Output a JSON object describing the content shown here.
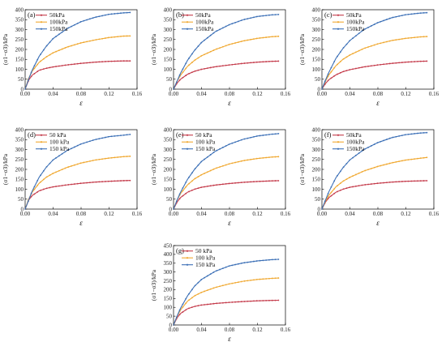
{
  "figure": {
    "series_colors": [
      "#c43a4a",
      "#f0a830",
      "#3b6fb6"
    ]
  },
  "chart_data": [
    {
      "panel": "(a)",
      "type": "line",
      "xlabel": "ε",
      "ylabel": "(σ1−σ3)/kPa",
      "xlim": [
        0,
        0.16
      ],
      "ylim": [
        0,
        400
      ],
      "xticks": [
        "0.00",
        "0.04",
        "0.08",
        "0.12",
        "0.16"
      ],
      "yticks": [
        "0",
        "50",
        "100",
        "150",
        "200",
        "250",
        "300",
        "350",
        "400"
      ],
      "legend_position": "top-left",
      "series": [
        {
          "name": "50kPa",
          "color": "#c43a4a",
          "x": [
            0,
            0.005,
            0.01,
            0.02,
            0.03,
            0.04,
            0.06,
            0.08,
            0.1,
            0.12,
            0.14,
            0.15
          ],
          "y": [
            0,
            45,
            70,
            95,
            105,
            112,
            122,
            130,
            136,
            140,
            142,
            142
          ]
        },
        {
          "name": "100kPa",
          "color": "#f0a830",
          "x": [
            0,
            0.005,
            0.01,
            0.02,
            0.03,
            0.04,
            0.06,
            0.08,
            0.1,
            0.12,
            0.14,
            0.15
          ],
          "y": [
            0,
            55,
            90,
            135,
            162,
            183,
            212,
            233,
            248,
            260,
            267,
            268
          ]
        },
        {
          "name": "150kPa",
          "color": "#3b6fb6",
          "x": [
            0,
            0.005,
            0.01,
            0.02,
            0.03,
            0.04,
            0.06,
            0.08,
            0.1,
            0.12,
            0.14,
            0.15
          ],
          "y": [
            0,
            50,
            95,
            165,
            215,
            255,
            305,
            340,
            362,
            377,
            384,
            386
          ]
        }
      ]
    },
    {
      "panel": "(b)",
      "type": "line",
      "xlabel": "ε",
      "ylabel": "(σ1−σ3)/kPa",
      "xlim": [
        0,
        0.16
      ],
      "ylim": [
        0,
        400
      ],
      "xticks": [
        "0.00",
        "0.04",
        "0.08",
        "0.12",
        "0.16"
      ],
      "yticks": [
        "0",
        "50",
        "100",
        "150",
        "200",
        "250",
        "300",
        "350",
        "400"
      ],
      "legend_position": "top-left",
      "series": [
        {
          "name": "50kPa",
          "color": "#c43a4a",
          "x": [
            0,
            0.005,
            0.01,
            0.02,
            0.03,
            0.04,
            0.06,
            0.08,
            0.1,
            0.12,
            0.14,
            0.15
          ],
          "y": [
            0,
            30,
            50,
            75,
            90,
            100,
            113,
            122,
            130,
            136,
            140,
            141
          ]
        },
        {
          "name": "100kPa",
          "color": "#f0a830",
          "x": [
            0,
            0.005,
            0.01,
            0.02,
            0.03,
            0.04,
            0.06,
            0.08,
            0.1,
            0.12,
            0.14,
            0.15
          ],
          "y": [
            0,
            40,
            70,
            115,
            145,
            168,
            200,
            225,
            243,
            256,
            264,
            266
          ]
        },
        {
          "name": "150kPa",
          "color": "#3b6fb6",
          "x": [
            0,
            0.005,
            0.01,
            0.02,
            0.03,
            0.04,
            0.06,
            0.08,
            0.1,
            0.12,
            0.14,
            0.15
          ],
          "y": [
            0,
            40,
            80,
            145,
            195,
            235,
            290,
            325,
            350,
            366,
            374,
            376
          ]
        }
      ]
    },
    {
      "panel": "(c)",
      "type": "line",
      "xlabel": "ε",
      "ylabel": "(σ1−σ3)/kPa",
      "xlim": [
        0,
        0.16
      ],
      "ylim": [
        0,
        400
      ],
      "xticks": [
        "0.00",
        "0.04",
        "0.08",
        "0.12",
        "0.16"
      ],
      "yticks": [
        "0",
        "50",
        "100",
        "150",
        "200",
        "250",
        "300",
        "350",
        "400"
      ],
      "legend_position": "top-left",
      "series": [
        {
          "name": "50kPa",
          "color": "#c43a4a",
          "x": [
            0,
            0.005,
            0.01,
            0.02,
            0.03,
            0.04,
            0.06,
            0.08,
            0.1,
            0.12,
            0.14,
            0.15
          ],
          "y": [
            0,
            28,
            48,
            72,
            88,
            98,
            112,
            122,
            130,
            136,
            140,
            141
          ]
        },
        {
          "name": "100kPa",
          "color": "#f0a830",
          "x": [
            0,
            0.005,
            0.01,
            0.02,
            0.03,
            0.04,
            0.06,
            0.08,
            0.1,
            0.12,
            0.14,
            0.15
          ],
          "y": [
            0,
            40,
            72,
            118,
            150,
            172,
            205,
            228,
            245,
            256,
            263,
            265
          ]
        },
        {
          "name": "150kPa",
          "color": "#3b6fb6",
          "x": [
            0,
            0.005,
            0.01,
            0.02,
            0.03,
            0.04,
            0.06,
            0.08,
            0.1,
            0.12,
            0.14,
            0.15
          ],
          "y": [
            0,
            45,
            85,
            155,
            205,
            245,
            300,
            335,
            360,
            375,
            383,
            385
          ]
        }
      ]
    },
    {
      "panel": "(d)",
      "type": "line",
      "xlabel": "ε",
      "ylabel": "(σ1−σ3)/kPa",
      "xlim": [
        0,
        0.16
      ],
      "ylim": [
        0,
        400
      ],
      "xticks": [
        "0.00",
        "0.04",
        "0.08",
        "0.12",
        "0.16"
      ],
      "yticks": [
        "0",
        "50",
        "100",
        "150",
        "200",
        "250",
        "300",
        "350",
        "400"
      ],
      "legend_position": "top-left",
      "series": [
        {
          "name": "50 kPa",
          "color": "#c43a4a",
          "x": [
            0,
            0.005,
            0.01,
            0.02,
            0.03,
            0.04,
            0.06,
            0.08,
            0.1,
            0.12,
            0.14,
            0.15
          ],
          "y": [
            0,
            45,
            68,
            92,
            104,
            112,
            122,
            130,
            136,
            140,
            143,
            144
          ]
        },
        {
          "name": "100 kPa",
          "color": "#f0a830",
          "x": [
            0,
            0.005,
            0.01,
            0.02,
            0.03,
            0.04,
            0.06,
            0.08,
            0.1,
            0.12,
            0.14,
            0.15
          ],
          "y": [
            0,
            50,
            85,
            130,
            160,
            180,
            210,
            232,
            247,
            257,
            264,
            266
          ]
        },
        {
          "name": "150 kPa",
          "color": "#3b6fb6",
          "x": [
            0,
            0.005,
            0.01,
            0.02,
            0.03,
            0.04,
            0.06,
            0.08,
            0.1,
            0.12,
            0.14,
            0.15
          ],
          "y": [
            0,
            45,
            90,
            160,
            210,
            248,
            295,
            328,
            350,
            365,
            372,
            376
          ]
        }
      ]
    },
    {
      "panel": "(e)",
      "type": "line",
      "xlabel": "ε",
      "ylabel": "(σ1−σ3)/kPa",
      "xlim": [
        0,
        0.16
      ],
      "ylim": [
        0,
        400
      ],
      "xticks": [
        "0.00",
        "0.04",
        "0.08",
        "0.12",
        "0.16"
      ],
      "yticks": [
        "0",
        "50",
        "100",
        "150",
        "200",
        "250",
        "300",
        "350",
        "400"
      ],
      "legend_position": "top-left",
      "series": [
        {
          "name": "50 kPa",
          "color": "#c43a4a",
          "x": [
            0,
            0.005,
            0.01,
            0.02,
            0.03,
            0.04,
            0.06,
            0.08,
            0.1,
            0.12,
            0.14,
            0.15
          ],
          "y": [
            0,
            35,
            58,
            85,
            100,
            110,
            121,
            129,
            135,
            139,
            142,
            143
          ]
        },
        {
          "name": "100 kPa",
          "color": "#f0a830",
          "x": [
            0,
            0.005,
            0.01,
            0.02,
            0.03,
            0.04,
            0.06,
            0.08,
            0.1,
            0.12,
            0.14,
            0.15
          ],
          "y": [
            0,
            45,
            78,
            122,
            152,
            173,
            205,
            228,
            244,
            255,
            262,
            264
          ]
        },
        {
          "name": "150 kPa",
          "color": "#3b6fb6",
          "x": [
            0,
            0.005,
            0.01,
            0.02,
            0.03,
            0.04,
            0.06,
            0.08,
            0.1,
            0.12,
            0.14,
            0.15
          ],
          "y": [
            0,
            45,
            85,
            150,
            200,
            240,
            292,
            327,
            352,
            368,
            377,
            380
          ]
        }
      ]
    },
    {
      "panel": "(f)",
      "type": "line",
      "xlabel": "ε",
      "ylabel": "(σ1−σ3)/kPa",
      "xlim": [
        0,
        0.16
      ],
      "ylim": [
        0,
        400
      ],
      "xticks": [
        "0.00",
        "0.04",
        "0.08",
        "0.12",
        "0.16"
      ],
      "yticks": [
        "0",
        "50",
        "100",
        "150",
        "200",
        "250",
        "300",
        "350",
        "400"
      ],
      "legend_position": "top-left",
      "series": [
        {
          "name": "50kPa",
          "color": "#c43a4a",
          "x": [
            0,
            0.005,
            0.01,
            0.02,
            0.03,
            0.04,
            0.06,
            0.08,
            0.1,
            0.12,
            0.14,
            0.15
          ],
          "y": [
            0,
            35,
            58,
            85,
            100,
            110,
            122,
            130,
            136,
            140,
            142,
            143
          ]
        },
        {
          "name": "100kPa",
          "color": "#f0a830",
          "x": [
            0,
            0.005,
            0.01,
            0.02,
            0.03,
            0.04,
            0.06,
            0.08,
            0.1,
            0.12,
            0.14,
            0.15
          ],
          "y": [
            0,
            40,
            70,
            112,
            140,
            160,
            192,
            215,
            233,
            247,
            256,
            260
          ]
        },
        {
          "name": "150kPa",
          "color": "#3b6fb6",
          "x": [
            0,
            0.005,
            0.01,
            0.02,
            0.03,
            0.04,
            0.06,
            0.08,
            0.1,
            0.12,
            0.14,
            0.15
          ],
          "y": [
            0,
            45,
            88,
            158,
            208,
            248,
            300,
            335,
            360,
            375,
            383,
            385
          ]
        }
      ]
    },
    {
      "panel": "(g)",
      "type": "line",
      "xlabel": "ε",
      "ylabel": "(σ1−σ3)/kPa",
      "xlim": [
        0,
        0.16
      ],
      "ylim": [
        0,
        450
      ],
      "xticks": [
        "0.00",
        "0.04",
        "0.08",
        "0.12",
        "0.16"
      ],
      "yticks": [
        "0",
        "50",
        "100",
        "150",
        "200",
        "250",
        "300",
        "350",
        "400",
        "450"
      ],
      "legend_position": "top-left",
      "series": [
        {
          "name": "50 kPa",
          "color": "#c43a4a",
          "x": [
            0,
            0.005,
            0.01,
            0.02,
            0.03,
            0.04,
            0.06,
            0.08,
            0.1,
            0.12,
            0.14,
            0.15
          ],
          "y": [
            0,
            40,
            65,
            92,
            105,
            113,
            122,
            128,
            133,
            137,
            139,
            140
          ]
        },
        {
          "name": "100 kPa",
          "color": "#f0a830",
          "x": [
            0,
            0.005,
            0.01,
            0.02,
            0.03,
            0.04,
            0.06,
            0.08,
            0.1,
            0.12,
            0.14,
            0.15
          ],
          "y": [
            0,
            48,
            85,
            135,
            165,
            185,
            213,
            233,
            248,
            258,
            264,
            266
          ]
        },
        {
          "name": "150 kPa",
          "color": "#3b6fb6",
          "x": [
            0,
            0.005,
            0.01,
            0.02,
            0.03,
            0.04,
            0.06,
            0.08,
            0.1,
            0.12,
            0.14,
            0.15
          ],
          "y": [
            0,
            50,
            95,
            165,
            220,
            258,
            305,
            335,
            352,
            363,
            370,
            372
          ]
        }
      ]
    }
  ]
}
